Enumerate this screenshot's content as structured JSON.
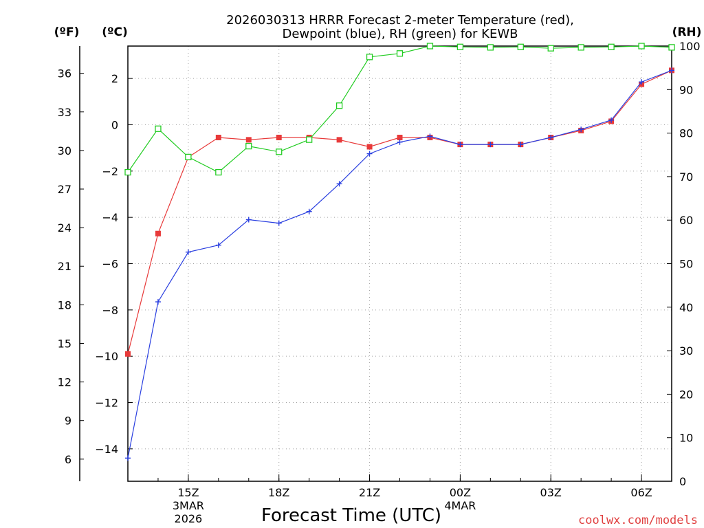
{
  "chart_data": {
    "type": "line",
    "title_line1": "2026030313 HRRR Forecast 2-meter Temperature (red),",
    "title_line2": "Dewpoint (blue), RH (green) for KEWB",
    "xlabel": "Forecast Time (UTC)",
    "credit": "coolwx.com/models",
    "unit_f": "(ºF)",
    "unit_c": "(ºC)",
    "unit_rh": "(RH)",
    "x_range": [
      13,
      31
    ],
    "c_range": [
      -15.4,
      3.4
    ],
    "rh_range": [
      0,
      100
    ],
    "x_ticks": [
      {
        "x": 15,
        "label": "15Z"
      },
      {
        "x": 18,
        "label": "18Z"
      },
      {
        "x": 21,
        "label": "21Z"
      },
      {
        "x": 24,
        "label": "00Z"
      },
      {
        "x": 27,
        "label": "03Z"
      },
      {
        "x": 30,
        "label": "06Z"
      }
    ],
    "date_labels": [
      {
        "x": 15,
        "line1": "3MAR",
        "line2": "2026"
      },
      {
        "x": 24,
        "line1": "4MAR",
        "line2": ""
      }
    ],
    "c_ticks": [
      -14,
      -12,
      -10,
      -8,
      -6,
      -4,
      -2,
      0,
      2
    ],
    "c_tick_labels": [
      "−14",
      "−12",
      "−10",
      "−8",
      "−6",
      "−4",
      "−2",
      "0",
      "2"
    ],
    "f_ticks": [
      6,
      9,
      12,
      15,
      18,
      21,
      24,
      27,
      30,
      33,
      36
    ],
    "rh_ticks": [
      0,
      10,
      20,
      30,
      40,
      50,
      60,
      70,
      80,
      90,
      100
    ],
    "x": [
      13,
      14,
      15,
      16,
      17,
      18,
      19,
      20,
      21,
      22,
      23,
      24,
      25,
      26,
      27,
      28,
      29,
      30,
      31
    ],
    "series": [
      {
        "name": "Temperature",
        "color": "#e83a3a",
        "marker": "filled-square",
        "axis": "c",
        "values": [
          -9.9,
          -4.7,
          -1.4,
          -0.55,
          -0.65,
          -0.55,
          -0.55,
          -0.65,
          -0.95,
          -0.55,
          -0.55,
          -0.85,
          -0.85,
          -0.85,
          -0.55,
          -0.25,
          0.15,
          1.75,
          2.35
        ]
      },
      {
        "name": "Dewpoint",
        "color": "#2a3fe0",
        "marker": "plus",
        "axis": "c",
        "values": [
          -14.4,
          -7.65,
          -5.5,
          -5.2,
          -4.1,
          -4.25,
          -3.75,
          -2.55,
          -1.25,
          -0.75,
          -0.5,
          -0.85,
          -0.85,
          -0.85,
          -0.55,
          -0.2,
          0.2,
          1.85,
          2.35
        ]
      },
      {
        "name": "RH",
        "color": "#22cc22",
        "marker": "open-square",
        "axis": "rh",
        "values": [
          71,
          81,
          74.5,
          71,
          77,
          75.7,
          78.5,
          86.3,
          97.5,
          98.3,
          100,
          99.8,
          99.7,
          99.8,
          99.5,
          99.7,
          99.8,
          100,
          99.7
        ]
      }
    ]
  }
}
